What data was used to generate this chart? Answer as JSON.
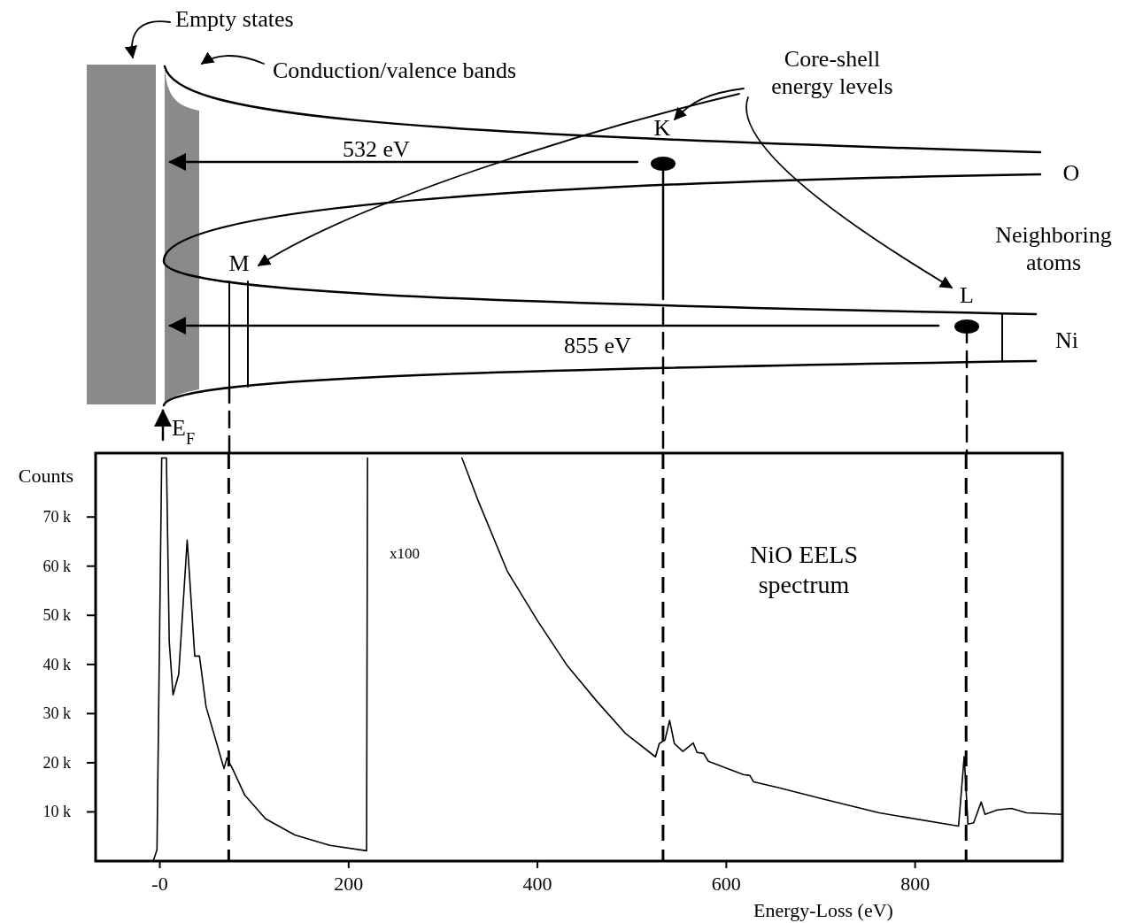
{
  "chart_data": {
    "type": "line",
    "xlabel": "Energy-Loss (eV)",
    "ylabel": "Counts",
    "xlim": [
      -68,
      956
    ],
    "ylim": [
      0,
      83000
    ],
    "xticks": [
      {
        "value": 0,
        "label": "-0"
      },
      200,
      400,
      600,
      800
    ],
    "yticks": [
      {
        "value": 10000,
        "label": "10 k"
      },
      {
        "value": 20000,
        "label": "20 k"
      },
      {
        "value": 30000,
        "label": "30 k"
      },
      {
        "value": 40000,
        "label": "40 k"
      },
      {
        "value": 50000,
        "label": "50 k"
      },
      {
        "value": 60000,
        "label": "60 k"
      },
      {
        "value": 70000,
        "label": "70 k"
      }
    ],
    "line_style": "solid",
    "series": [
      {
        "color": "#000000",
        "x": [
          -7,
          -3,
          2,
          7,
          10,
          14,
          20,
          29,
          37,
          42,
          49,
          68,
          71,
          77,
          90,
          112,
          143,
          180,
          219,
          220
        ],
        "values": [
          0,
          2300,
          82000,
          82000,
          44600,
          33800,
          38000,
          65300,
          41700,
          41700,
          31400,
          18800,
          21000,
          18800,
          13400,
          8600,
          5300,
          3200,
          2100,
          82000
        ]
      },
      {
        "color": "#000000",
        "x": [
          320,
          337,
          368,
          400,
          431,
          462,
          493,
          525,
          529,
          535,
          540,
          545,
          554,
          565,
          569,
          576,
          581,
          618,
          625,
          629,
          656,
          701,
          762,
          846,
          852,
          856,
          862,
          870,
          874,
          887,
          902,
          918,
          956
        ],
        "values": [
          82000,
          73400,
          59000,
          48900,
          39900,
          32700,
          26000,
          21200,
          23900,
          24600,
          28600,
          23900,
          22300,
          24000,
          22100,
          21900,
          20300,
          17600,
          17400,
          16100,
          14900,
          12700,
          9800,
          7100,
          21300,
          7500,
          7800,
          12000,
          9500,
          10400,
          10700,
          9800,
          9500
        ]
      }
    ],
    "ref_lines": [
      {
        "axis": "x",
        "value": 73,
        "line_style": "dashed",
        "color": "#000000"
      },
      {
        "axis": "x",
        "value": 533,
        "line_style": "dashed",
        "color": "#000000"
      },
      {
        "axis": "x",
        "value": 854,
        "line_style": "dashed",
        "color": "#000000"
      }
    ],
    "annotations": [
      "Empty states",
      "Conduction/valence bands",
      "Core-shell energy levels",
      "K",
      "532 eV",
      "O",
      "Neighboring atoms",
      "M",
      "L",
      "855 eV",
      "Ni",
      "E$_{F}$",
      "x100",
      "NiO EELS spectrum"
    ]
  }
}
